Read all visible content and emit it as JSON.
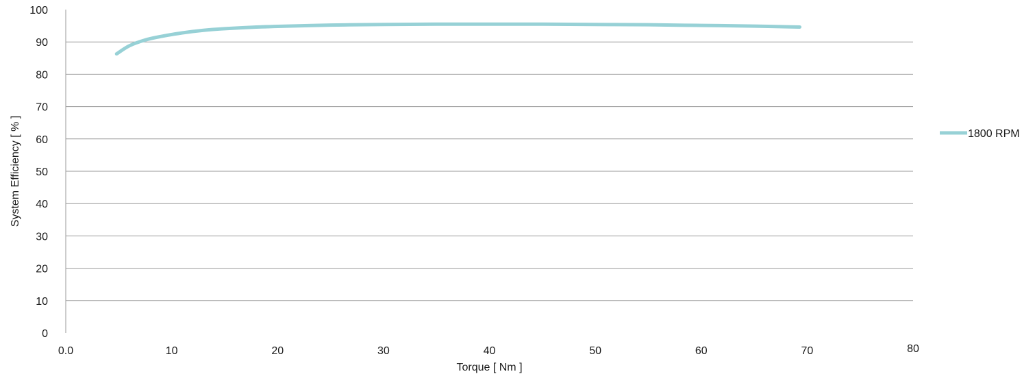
{
  "chart_data": {
    "type": "line",
    "title": "",
    "xlabel": "Torque [ Nm ]",
    "ylabel": "System Efficiency [ % ]",
    "xlim": [
      0,
      80
    ],
    "ylim": [
      0,
      100
    ],
    "x_ticks": [
      0,
      10,
      20,
      30,
      40,
      50,
      60,
      70,
      80
    ],
    "x_tick_labels": [
      "0.0",
      "10",
      "20",
      "30",
      "40",
      "50",
      "60",
      "70",
      "80"
    ],
    "y_ticks": [
      0,
      10,
      20,
      30,
      40,
      50,
      60,
      70,
      80,
      90,
      100
    ],
    "y_tick_labels": [
      "0",
      "10",
      "20",
      "30",
      "40",
      "50",
      "60",
      "70",
      "80",
      "90",
      "100"
    ],
    "grid": "horizontal",
    "legend": "right",
    "series": [
      {
        "name": "1800 RPM",
        "color": "#97d1d6",
        "x": [
          4.8,
          6,
          7.5,
          9,
          11,
          13,
          15,
          18,
          20,
          25,
          30,
          35,
          40,
          45,
          50,
          55,
          60,
          65,
          69.3
        ],
        "y": [
          86.3,
          88.8,
          90.6,
          91.7,
          92.8,
          93.6,
          94.1,
          94.6,
          94.8,
          95.2,
          95.4,
          95.5,
          95.5,
          95.5,
          95.4,
          95.3,
          95.1,
          94.9,
          94.6
        ]
      }
    ]
  }
}
